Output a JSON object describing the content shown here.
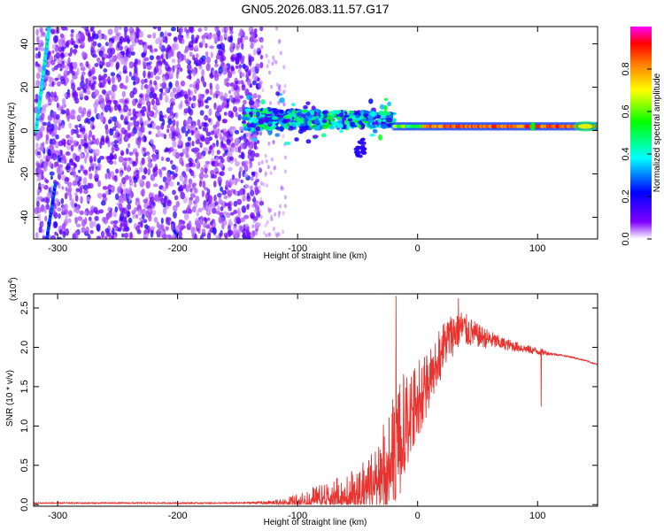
{
  "chart_data": [
    {
      "type": "heatmap",
      "title": "GN05.2026.083.11.57.G17",
      "xlabel": "Height of straight line (km)",
      "ylabel": "Frequency (Hz)",
      "xlim": [
        -320,
        150
      ],
      "ylim": [
        -50,
        48
      ],
      "xticks": [
        -300,
        -200,
        -100,
        0,
        100
      ],
      "yticks": [
        -40,
        -20,
        0,
        20,
        40
      ],
      "colorbar": {
        "label": "Normalized spectral amplitude",
        "range": [
          0.0,
          1.0
        ],
        "ticks": [
          0.0,
          0.2,
          0.4,
          0.6,
          0.8
        ],
        "colors": [
          "#ffffff",
          "#7f00ff",
          "#0000ff",
          "#00ffff",
          "#00ff00",
          "#ffff00",
          "#ff8000",
          "#ff0000",
          "#ff00ff"
        ]
      },
      "regions": [
        {
          "name": "noise",
          "x_range": [
            -318,
            -130
          ],
          "f_range": [
            -50,
            48
          ],
          "amplitude": 0.15
        },
        {
          "name": "transition",
          "x_range": [
            -145,
            -20
          ],
          "f_center": 5,
          "f_spread": 8,
          "amplitude": 0.45
        },
        {
          "name": "signal-line",
          "x_range": [
            -20,
            150
          ],
          "f_center": 2,
          "amplitude": 0.9
        },
        {
          "name": "steep-streak-upper",
          "x_range": [
            -318,
            -307
          ],
          "f_range": [
            0,
            48
          ]
        },
        {
          "name": "steep-streak-lower",
          "x_range": [
            -309,
            -302
          ],
          "f_range": [
            -50,
            -25
          ]
        }
      ]
    },
    {
      "type": "line",
      "xlabel": "Height of straight line (km)",
      "ylabel": "SNR (10 * v/v)",
      "y_scale_label": "(x10",
      "y_scale_exp": "4",
      "xlim": [
        -320,
        150
      ],
      "ylim": [
        -0.02,
        2.68
      ],
      "xticks": [
        -300,
        -200,
        -100,
        0,
        100
      ],
      "yticks": [
        0.0,
        0.5,
        1.0,
        1.5,
        2.0,
        2.5
      ],
      "ytick_labels": [
        "0.0",
        "0.5",
        "1.0",
        "1.5",
        "2.0",
        "2.5"
      ],
      "color": "#e8332f",
      "series": [
        {
          "name": "SNR",
          "x": [
            -320,
            -250,
            -200,
            -150,
            -120,
            -100,
            -80,
            -60,
            -40,
            -25,
            -15,
            -5,
            5,
            15,
            25,
            35,
            50,
            70,
            90,
            100,
            110,
            120,
            130,
            140,
            150
          ],
          "y": [
            0.02,
            0.02,
            0.02,
            0.02,
            0.03,
            0.06,
            0.12,
            0.18,
            0.3,
            0.55,
            0.95,
            1.25,
            1.5,
            1.85,
            2.1,
            2.25,
            2.15,
            2.05,
            1.98,
            1.95,
            1.92,
            1.9,
            1.87,
            1.83,
            1.78
          ],
          "noise": [
            0.01,
            0.01,
            0.01,
            0.01,
            0.02,
            0.08,
            0.15,
            0.2,
            0.3,
            0.6,
            0.7,
            0.5,
            0.4,
            0.35,
            0.3,
            0.25,
            0.15,
            0.08,
            0.05,
            0.05,
            0.02,
            0.01,
            0.01,
            0.01,
            0.01
          ]
        }
      ],
      "spikes": [
        {
          "x": -18,
          "y": 2.65
        },
        {
          "x": 34,
          "y": 2.62
        },
        {
          "x": 103,
          "y": 1.25
        }
      ]
    }
  ]
}
